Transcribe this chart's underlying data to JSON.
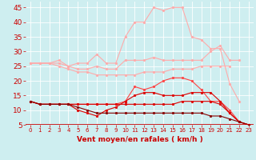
{
  "x": [
    0,
    1,
    2,
    3,
    4,
    5,
    6,
    7,
    8,
    9,
    10,
    11,
    12,
    13,
    14,
    15,
    16,
    17,
    18,
    19,
    20,
    21,
    22,
    23
  ],
  "series": [
    {
      "color": "#ffaaaa",
      "linewidth": 0.8,
      "markersize": 2.0,
      "values": [
        26,
        26,
        26,
        27,
        25,
        26,
        26,
        29,
        26,
        26,
        35,
        40,
        40,
        45,
        44,
        45,
        45,
        35,
        34,
        31,
        31,
        19,
        13,
        null
      ]
    },
    {
      "color": "#ffaaaa",
      "linewidth": 0.8,
      "markersize": 2.0,
      "values": [
        26,
        26,
        26,
        26,
        25,
        24,
        24,
        25,
        24,
        24,
        27,
        27,
        27,
        28,
        27,
        27,
        27,
        27,
        27,
        30,
        32,
        27,
        27,
        null
      ]
    },
    {
      "color": "#ffaaaa",
      "linewidth": 0.8,
      "markersize": 2.0,
      "values": [
        26,
        26,
        26,
        25,
        24,
        23,
        23,
        22,
        22,
        22,
        22,
        22,
        23,
        23,
        23,
        24,
        24,
        24,
        25,
        25,
        25,
        25,
        null,
        null
      ]
    },
    {
      "color": "#ff4444",
      "linewidth": 0.8,
      "markersize": 2.0,
      "values": [
        13,
        12,
        12,
        12,
        12,
        12,
        12,
        12,
        12,
        12,
        13,
        18,
        17,
        18,
        20,
        21,
        21,
        20,
        17,
        13,
        13,
        10,
        6,
        5
      ]
    },
    {
      "color": "#dd0000",
      "linewidth": 0.8,
      "markersize": 2.0,
      "values": [
        13,
        12,
        12,
        12,
        12,
        10,
        9,
        8,
        10,
        11,
        13,
        15,
        16,
        16,
        15,
        15,
        15,
        16,
        16,
        16,
        13,
        9,
        6,
        5
      ]
    },
    {
      "color": "#dd0000",
      "linewidth": 0.8,
      "markersize": 2.0,
      "values": [
        13,
        12,
        12,
        12,
        12,
        12,
        12,
        12,
        12,
        12,
        12,
        12,
        12,
        12,
        12,
        12,
        13,
        13,
        13,
        13,
        12,
        9,
        6,
        5
      ]
    },
    {
      "color": "#880000",
      "linewidth": 0.8,
      "markersize": 2.0,
      "values": [
        13,
        12,
        12,
        12,
        12,
        11,
        10,
        9,
        9,
        9,
        9,
        9,
        9,
        9,
        9,
        9,
        9,
        9,
        9,
        8,
        8,
        7,
        6,
        5
      ]
    }
  ],
  "ylim": [
    5,
    47
  ],
  "xlim": [
    -0.5,
    23.5
  ],
  "yticks": [
    5,
    10,
    15,
    20,
    25,
    30,
    35,
    40,
    45
  ],
  "xticks": [
    0,
    1,
    2,
    3,
    4,
    5,
    6,
    7,
    8,
    9,
    10,
    11,
    12,
    13,
    14,
    15,
    16,
    17,
    18,
    19,
    20,
    21,
    22,
    23
  ],
  "xlabel": "Vent moyen/en rafales ( km/h )",
  "background_color": "#ceeef0",
  "grid_color": "#ffffff",
  "tick_label_color": "#cc0000",
  "xlabel_color": "#cc0000",
  "xlabel_fontsize": 6.5,
  "ytick_fontsize": 6.5,
  "xtick_fontsize": 5.0
}
